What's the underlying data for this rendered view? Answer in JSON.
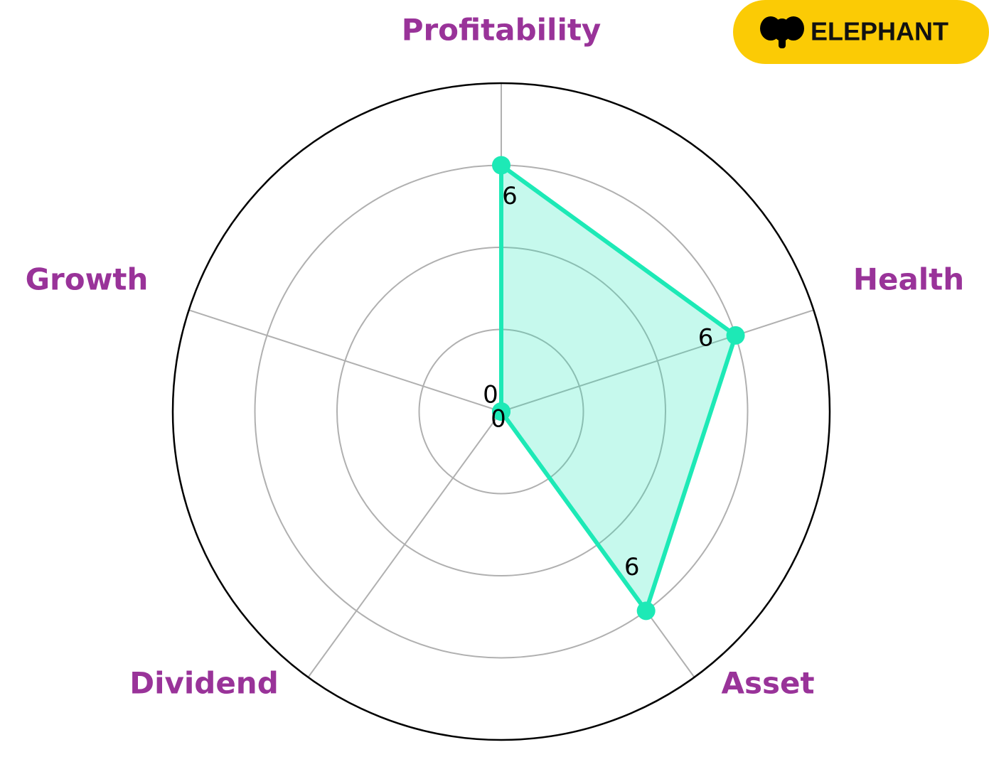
{
  "chart_data": {
    "type": "radar",
    "categories": [
      "Profitability",
      "Health",
      "Asset",
      "Dividend",
      "Growth"
    ],
    "values": [
      6,
      6,
      6,
      0,
      0
    ],
    "color": "#1de9b6",
    "label_color": "#993399",
    "ylim": [
      0,
      8
    ],
    "rticks": [
      2,
      4,
      6
    ],
    "grid": true
  },
  "logo": {
    "text": "ELEPHANT",
    "color": "#fbcb05"
  }
}
